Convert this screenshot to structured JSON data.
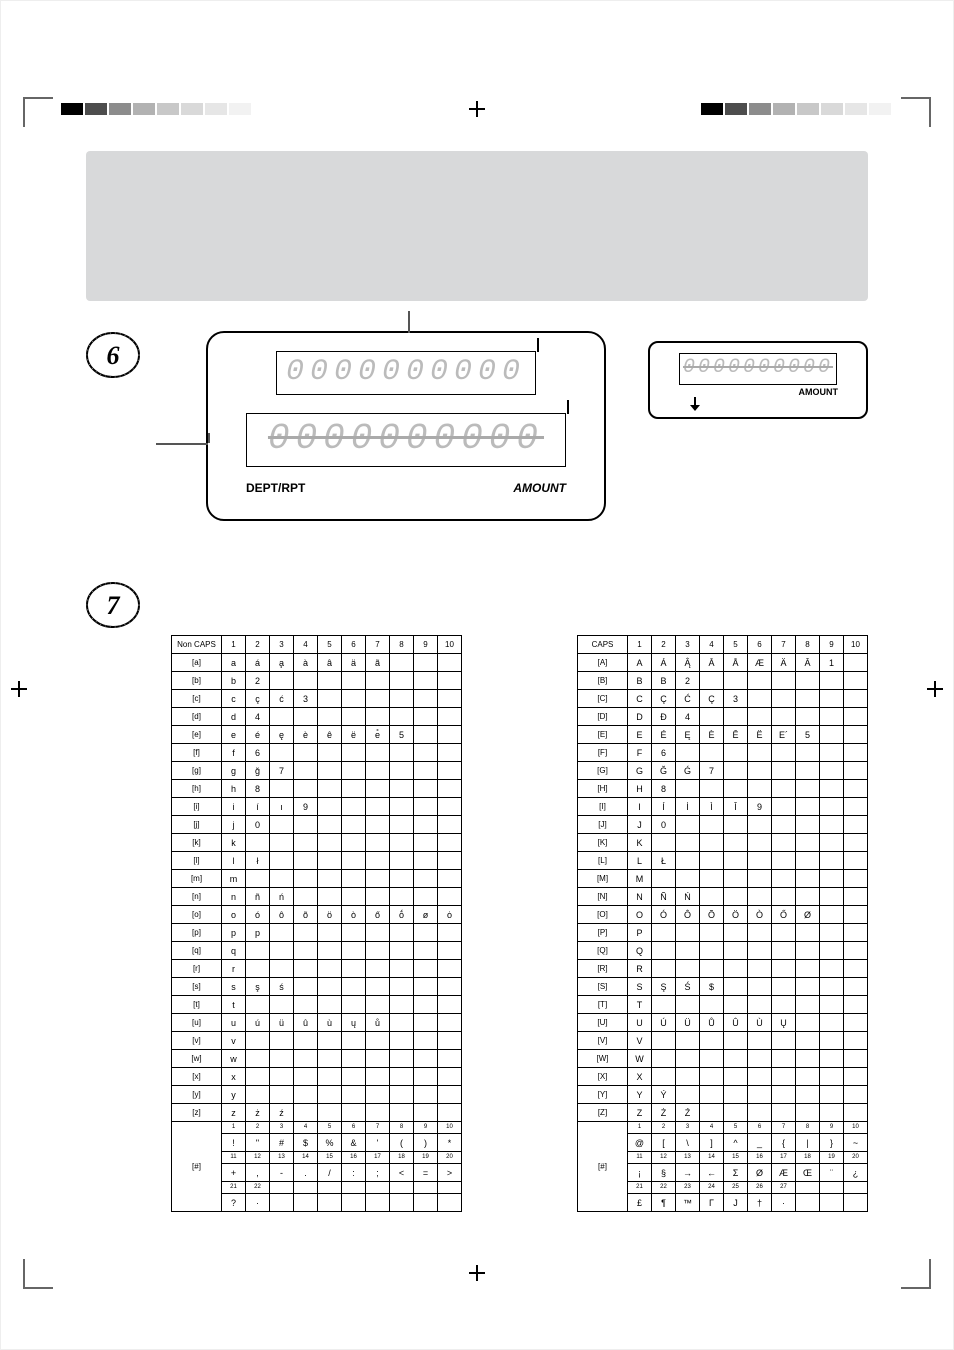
{
  "colors": {
    "panel_bg": "#d8d9da",
    "page_bg": "#ffffff",
    "cell_border": "#000000",
    "lcd_border": "#000000",
    "lcd_digit": "#bbbbbb"
  },
  "reg_strip": {
    "blocks": [
      "#000000",
      "#4d4d4d",
      "#8c8c8c",
      "#b2b2b2",
      "#c8c8c8",
      "#d9d9d9",
      "#e6e6e6",
      "#f2f2f2"
    ]
  },
  "section6": {
    "badge_number": "6",
    "big_display": {
      "row1_digits": "0000000000",
      "row2_digits": "0000000000",
      "label_left": "DEPT/RPT",
      "label_right": "AMOUNT"
    },
    "small_display": {
      "digits": "0000000000",
      "label": "AMOUNT"
    }
  },
  "section7": {
    "badge_number": "7",
    "left_table": {
      "corner_label": "Non CAPS",
      "col_headers": [
        "1",
        "2",
        "3",
        "4",
        "5",
        "6",
        "7",
        "8",
        "9",
        "10"
      ],
      "rows": [
        {
          "label": "[a]",
          "cells": [
            "a",
            "á",
            "a̧",
            "à",
            "â",
            "ä",
            "ã",
            "",
            "",
            ""
          ]
        },
        {
          "label": "[b]",
          "cells": [
            "b",
            "2",
            "",
            "",
            "",
            "",
            "",
            "",
            "",
            ""
          ]
        },
        {
          "label": "[c]",
          "cells": [
            "c",
            "ç",
            "ć",
            "3",
            "",
            "",
            "",
            "",
            "",
            ""
          ]
        },
        {
          "label": "[d]",
          "cells": [
            "d",
            "4",
            "",
            "",
            "",
            "",
            "",
            "",
            "",
            ""
          ]
        },
        {
          "label": "[e]",
          "cells": [
            "e",
            "é",
            "ę",
            "è",
            "ê",
            "ë",
            "e̊",
            "5",
            "",
            ""
          ]
        },
        {
          "label": "[f]",
          "cells": [
            "f",
            "6",
            "",
            "",
            "",
            "",
            "",
            "",
            "",
            ""
          ]
        },
        {
          "label": "[g]",
          "cells": [
            "g",
            "ğ",
            "7",
            "",
            "",
            "",
            "",
            "",
            "",
            ""
          ]
        },
        {
          "label": "[h]",
          "cells": [
            "h",
            "8",
            "",
            "",
            "",
            "",
            "",
            "",
            "",
            ""
          ]
        },
        {
          "label": "[i]",
          "cells": [
            "i",
            "í",
            "ı",
            "9",
            "",
            "",
            "",
            "",
            "",
            ""
          ]
        },
        {
          "label": "[j]",
          "cells": [
            "j",
            "0",
            "",
            "",
            "",
            "",
            "",
            "",
            "",
            ""
          ]
        },
        {
          "label": "[k]",
          "cells": [
            "k",
            "",
            "",
            "",
            "",
            "",
            "",
            "",
            "",
            ""
          ]
        },
        {
          "label": "[l]",
          "cells": [
            "l",
            "ł",
            "",
            "",
            "",
            "",
            "",
            "",
            "",
            ""
          ]
        },
        {
          "label": "[m]",
          "cells": [
            "m",
            "",
            "",
            "",
            "",
            "",
            "",
            "",
            "",
            ""
          ]
        },
        {
          "label": "[n]",
          "cells": [
            "n",
            "ñ",
            "ń",
            "",
            "",
            "",
            "",
            "",
            "",
            ""
          ]
        },
        {
          "label": "[o]",
          "cells": [
            "o",
            "ó",
            "ô",
            "õ",
            "ö",
            "ò",
            "ő",
            "ṓ",
            "ø",
            "ȯ"
          ]
        },
        {
          "label": "[p]",
          "cells": [
            "p",
            "p",
            "",
            "",
            "",
            "",
            "",
            "",
            "",
            ""
          ]
        },
        {
          "label": "[q]",
          "cells": [
            "q",
            "",
            "",
            "",
            "",
            "",
            "",
            "",
            "",
            ""
          ]
        },
        {
          "label": "[r]",
          "cells": [
            "r",
            "",
            "",
            "",
            "",
            "",
            "",
            "",
            "",
            ""
          ]
        },
        {
          "label": "[s]",
          "cells": [
            "s",
            "ş",
            "ś",
            "",
            "",
            "",
            "",
            "",
            "",
            ""
          ]
        },
        {
          "label": "[t]",
          "cells": [
            "t",
            "",
            "",
            "",
            "",
            "",
            "",
            "",
            "",
            ""
          ]
        },
        {
          "label": "[u]",
          "cells": [
            "u",
            "ú",
            "ü",
            "û",
            "ù",
            "ų",
            "ů",
            "",
            "",
            ""
          ]
        },
        {
          "label": "[v]",
          "cells": [
            "v",
            "",
            "",
            "",
            "",
            "",
            "",
            "",
            "",
            ""
          ]
        },
        {
          "label": "[w]",
          "cells": [
            "w",
            "",
            "",
            "",
            "",
            "",
            "",
            "",
            "",
            ""
          ]
        },
        {
          "label": "[x]",
          "cells": [
            "x",
            "",
            "",
            "",
            "",
            "",
            "",
            "",
            "",
            ""
          ]
        },
        {
          "label": "[y]",
          "cells": [
            "y",
            "",
            "",
            "",
            "",
            "",
            "",
            "",
            "",
            ""
          ]
        },
        {
          "label": "[z]",
          "cells": [
            "z",
            "ż",
            "ź",
            "",
            "",
            "",
            "",
            "",
            "",
            ""
          ]
        }
      ],
      "symbol_block": {
        "label": "[#]",
        "index_rows": [
          [
            "1",
            "2",
            "3",
            "4",
            "5",
            "6",
            "7",
            "8",
            "9",
            "10"
          ],
          [
            "11",
            "12",
            "13",
            "14",
            "15",
            "16",
            "17",
            "18",
            "19",
            "20"
          ],
          [
            "21",
            "22",
            "",
            "",
            "",
            "",
            "",
            "",
            "",
            ""
          ]
        ],
        "data_rows": [
          [
            "!",
            "\"",
            "#",
            "$",
            "%",
            "&",
            "'",
            "(",
            ")",
            "*"
          ],
          [
            "+",
            ",",
            "-",
            ".",
            "/",
            ":",
            ";",
            "<",
            "=",
            ">"
          ],
          [
            "?",
            "·",
            "",
            "",
            "",
            "",
            "",
            "",
            "",
            ""
          ]
        ]
      }
    },
    "right_table": {
      "corner_label": "CAPS",
      "col_headers": [
        "1",
        "2",
        "3",
        "4",
        "5",
        "6",
        "7",
        "8",
        "9",
        "10"
      ],
      "rows": [
        {
          "label": "[A]",
          "cells": [
            "A",
            "Á",
            "Ą̂",
            "Ā",
            "Å",
            "Æ",
            "Ä",
            "Â",
            "1",
            ""
          ]
        },
        {
          "label": "[B]",
          "cells": [
            "B",
            "B",
            "2",
            "",
            "",
            "",
            "",
            "",
            "",
            ""
          ]
        },
        {
          "label": "[C]",
          "cells": [
            "C",
            "Ç",
            "Ć",
            "Ç",
            "3",
            "",
            "",
            "",
            "",
            ""
          ]
        },
        {
          "label": "[D]",
          "cells": [
            "D",
            "Đ",
            "4",
            "",
            "",
            "",
            "",
            "",
            "",
            ""
          ]
        },
        {
          "label": "[E]",
          "cells": [
            "E",
            "É",
            "Ę",
            "È",
            "Ê",
            "Ë",
            "E´",
            "5",
            "",
            ""
          ]
        },
        {
          "label": "[F]",
          "cells": [
            "F",
            "6",
            "",
            "",
            "",
            "",
            "",
            "",
            "",
            ""
          ]
        },
        {
          "label": "[G]",
          "cells": [
            "G",
            "Ğ",
            "Ǵ",
            "7",
            "",
            "",
            "",
            "",
            "",
            ""
          ]
        },
        {
          "label": "[H]",
          "cells": [
            "H",
            "8",
            "",
            "",
            "",
            "",
            "",
            "",
            "",
            ""
          ]
        },
        {
          "label": "[I]",
          "cells": [
            "I",
            "Í",
            "İ",
            "Ì",
            "Î",
            "9",
            "",
            "",
            "",
            ""
          ]
        },
        {
          "label": "[J]",
          "cells": [
            "J",
            "0",
            "",
            "",
            "",
            "",
            "",
            "",
            "",
            ""
          ]
        },
        {
          "label": "[K]",
          "cells": [
            "K",
            "",
            "",
            "",
            "",
            "",
            "",
            "",
            "",
            ""
          ]
        },
        {
          "label": "[L]",
          "cells": [
            "L",
            "Ł",
            "",
            "",
            "",
            "",
            "",
            "",
            "",
            ""
          ]
        },
        {
          "label": "[M]",
          "cells": [
            "M",
            "",
            "",
            "",
            "",
            "",
            "",
            "",
            "",
            ""
          ]
        },
        {
          "label": "[N]",
          "cells": [
            "N",
            "Ñ",
            "Ń",
            "",
            "",
            "",
            "",
            "",
            "",
            ""
          ]
        },
        {
          "label": "[O]",
          "cells": [
            "O",
            "Ó",
            "Ô",
            "Õ",
            "Ö",
            "Ò",
            "Ő",
            "Ø",
            "",
            ""
          ]
        },
        {
          "label": "[P]",
          "cells": [
            "P",
            "",
            "",
            "",
            "",
            "",
            "",
            "",
            "",
            ""
          ]
        },
        {
          "label": "[Q]",
          "cells": [
            "Q",
            "",
            "",
            "",
            "",
            "",
            "",
            "",
            "",
            ""
          ]
        },
        {
          "label": "[R]",
          "cells": [
            "R",
            "",
            "",
            "",
            "",
            "",
            "",
            "",
            "",
            ""
          ]
        },
        {
          "label": "[S]",
          "cells": [
            "S",
            "Ş",
            "Ś",
            "$",
            "",
            "",
            "",
            "",
            "",
            ""
          ]
        },
        {
          "label": "[T]",
          "cells": [
            "T",
            "",
            "",
            "",
            "",
            "",
            "",
            "",
            "",
            ""
          ]
        },
        {
          "label": "[U]",
          "cells": [
            "U",
            "Ú",
            "Ü",
            "Ů",
            "Û",
            "Ù",
            "Ų",
            "",
            "",
            ""
          ]
        },
        {
          "label": "[V]",
          "cells": [
            "V",
            "",
            "",
            "",
            "",
            "",
            "",
            "",
            "",
            ""
          ]
        },
        {
          "label": "[W]",
          "cells": [
            "W",
            "",
            "",
            "",
            "",
            "",
            "",
            "",
            "",
            ""
          ]
        },
        {
          "label": "[X]",
          "cells": [
            "X",
            "",
            "",
            "",
            "",
            "",
            "",
            "",
            "",
            ""
          ]
        },
        {
          "label": "[Y]",
          "cells": [
            "Y",
            "Ý",
            "",
            "",
            "",
            "",
            "",
            "",
            "",
            ""
          ]
        },
        {
          "label": "[Z]",
          "cells": [
            "Z",
            "Ż",
            "Ź",
            "",
            "",
            "",
            "",
            "",
            "",
            ""
          ]
        }
      ],
      "symbol_block": {
        "label": "[#]",
        "index_rows": [
          [
            "1",
            "2",
            "3",
            "4",
            "5",
            "6",
            "7",
            "8",
            "9",
            "10"
          ],
          [
            "11",
            "12",
            "13",
            "14",
            "15",
            "16",
            "17",
            "18",
            "19",
            "20"
          ],
          [
            "21",
            "22",
            "23",
            "24",
            "25",
            "26",
            "27",
            "",
            "",
            ""
          ]
        ],
        "data_rows": [
          [
            "@",
            "[",
            "\\",
            "]",
            "^",
            "_",
            "{",
            "|",
            "}",
            "~"
          ],
          [
            "¡",
            "§",
            "→",
            "←",
            "Σ",
            "Ø",
            "Æ",
            "Œ",
            "¨",
            "¿"
          ],
          [
            "£",
            "¶",
            "™",
            "Γ",
            "J",
            "†",
            "·",
            "",
            "",
            ""
          ]
        ]
      }
    }
  }
}
